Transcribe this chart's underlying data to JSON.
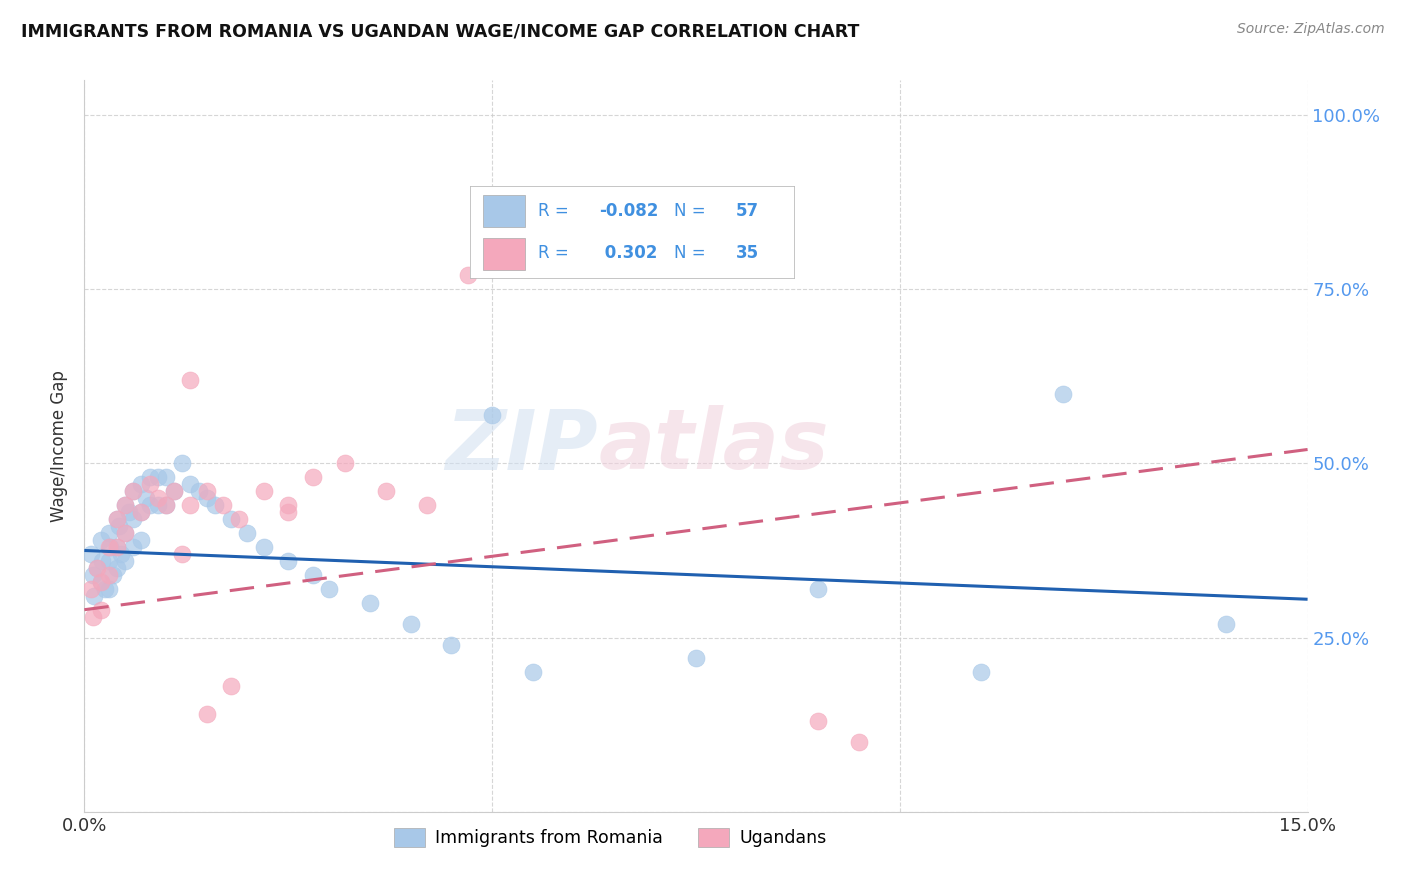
{
  "title": "IMMIGRANTS FROM ROMANIA VS UGANDAN WAGE/INCOME GAP CORRELATION CHART",
  "source": "Source: ZipAtlas.com",
  "ylabel": "Wage/Income Gap",
  "xlim": [
    0.0,
    0.15
  ],
  "ylim": [
    0.0,
    1.05
  ],
  "color_romania": "#a8c8e8",
  "color_uganda": "#f4a8bc",
  "line_color_romania": "#2060b0",
  "line_color_uganda": "#d06080",
  "watermark_1": "ZIP",
  "watermark_2": "atlas",
  "legend_r1": "R = ",
  "legend_v1": "-0.082",
  "legend_n1": "N = ",
  "legend_c1": "57",
  "legend_r2": "R = ",
  "legend_v2": " 0.302",
  "legend_n2": "N = ",
  "legend_c2": "35",
  "legend_text_color": "#4090e0",
  "right_tick_color": "#5599ee",
  "romania_x": [
    0.0008,
    0.001,
    0.0012,
    0.0015,
    0.002,
    0.002,
    0.0022,
    0.0025,
    0.003,
    0.003,
    0.003,
    0.0032,
    0.0035,
    0.004,
    0.004,
    0.004,
    0.0042,
    0.0045,
    0.005,
    0.005,
    0.005,
    0.0055,
    0.006,
    0.006,
    0.006,
    0.007,
    0.007,
    0.007,
    0.0075,
    0.008,
    0.008,
    0.009,
    0.009,
    0.01,
    0.01,
    0.011,
    0.012,
    0.013,
    0.014,
    0.015,
    0.016,
    0.018,
    0.02,
    0.022,
    0.025,
    0.028,
    0.03,
    0.035,
    0.04,
    0.045,
    0.05,
    0.055,
    0.075,
    0.09,
    0.11,
    0.12,
    0.14
  ],
  "romania_y": [
    0.37,
    0.34,
    0.31,
    0.35,
    0.39,
    0.33,
    0.36,
    0.32,
    0.4,
    0.36,
    0.32,
    0.38,
    0.34,
    0.42,
    0.38,
    0.35,
    0.41,
    0.37,
    0.44,
    0.4,
    0.36,
    0.43,
    0.46,
    0.42,
    0.38,
    0.47,
    0.43,
    0.39,
    0.45,
    0.48,
    0.44,
    0.48,
    0.44,
    0.48,
    0.44,
    0.46,
    0.5,
    0.47,
    0.46,
    0.45,
    0.44,
    0.42,
    0.4,
    0.38,
    0.36,
    0.34,
    0.32,
    0.3,
    0.27,
    0.24,
    0.57,
    0.2,
    0.22,
    0.32,
    0.2,
    0.6,
    0.27
  ],
  "uganda_x": [
    0.0008,
    0.001,
    0.0015,
    0.002,
    0.002,
    0.003,
    0.003,
    0.004,
    0.004,
    0.005,
    0.005,
    0.006,
    0.007,
    0.008,
    0.009,
    0.01,
    0.011,
    0.013,
    0.015,
    0.017,
    0.019,
    0.022,
    0.025,
    0.028,
    0.032,
    0.037,
    0.042,
    0.047,
    0.09,
    0.095,
    0.025,
    0.012,
    0.015,
    0.013,
    0.018
  ],
  "uganda_y": [
    0.32,
    0.28,
    0.35,
    0.33,
    0.29,
    0.38,
    0.34,
    0.42,
    0.38,
    0.44,
    0.4,
    0.46,
    0.43,
    0.47,
    0.45,
    0.44,
    0.46,
    0.44,
    0.46,
    0.44,
    0.42,
    0.46,
    0.44,
    0.48,
    0.5,
    0.46,
    0.44,
    0.77,
    0.13,
    0.1,
    0.43,
    0.37,
    0.14,
    0.62,
    0.18
  ]
}
